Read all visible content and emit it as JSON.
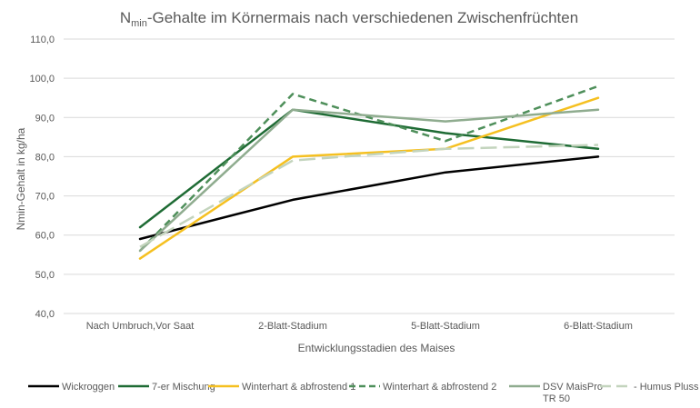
{
  "chart_data": {
    "type": "line",
    "title_main": "N",
    "title_sub": "min",
    "title_rest": "-Gehalte im Körnermais nach verschiedenen Zwischenfrüchten",
    "xlabel": "Entwicklungsstadien des Maises",
    "ylabel": "Nmin-Gehalt  in kg/ha",
    "categories": [
      "Nach Umbruch,Vor Saat",
      "2-Blatt-Stadium",
      "5-Blatt-Stadium",
      "6-Blatt-Stadium"
    ],
    "ylim": [
      40,
      110
    ],
    "yticks": [
      "40,0",
      "50,0",
      "60,0",
      "70,0",
      "80,0",
      "90,0",
      "100,0",
      "110,0"
    ],
    "grid": true,
    "legend_position": "bottom",
    "series": [
      {
        "name": "Wickroggen",
        "values": [
          59,
          69,
          76,
          80
        ],
        "color": "#000000",
        "dash": "solid"
      },
      {
        "name": "7-er Mischung",
        "values": [
          62,
          92,
          86,
          82
        ],
        "color": "#1e6b34",
        "dash": "solid"
      },
      {
        "name": "Winterhart & abfrostend 1",
        "values": [
          54,
          80,
          82,
          95
        ],
        "color": "#f5c020",
        "dash": "solid"
      },
      {
        "name": "Winterhart & abfrostend 2",
        "values": [
          56,
          96,
          84,
          98
        ],
        "color": "#4e8f5a",
        "dash": "dashed"
      },
      {
        "name": "DSV MaisPro TR 50",
        "values": [
          56,
          92,
          89,
          92
        ],
        "color": "#8fac8f",
        "dash": "solid"
      },
      {
        "name": "Humus Pluss",
        "values": [
          57,
          79,
          82,
          83
        ],
        "color": "#c3d4bd",
        "dash": "longdash"
      }
    ],
    "legend_labels": [
      [
        "Wickroggen"
      ],
      [
        "7-er Mischung"
      ],
      [
        "Winterhart & abfrostend 1"
      ],
      [
        "Winterhart & abfrostend 2"
      ],
      [
        "DSV MaisPro",
        "TR 50"
      ],
      [
        "- Humus Pluss"
      ]
    ]
  }
}
